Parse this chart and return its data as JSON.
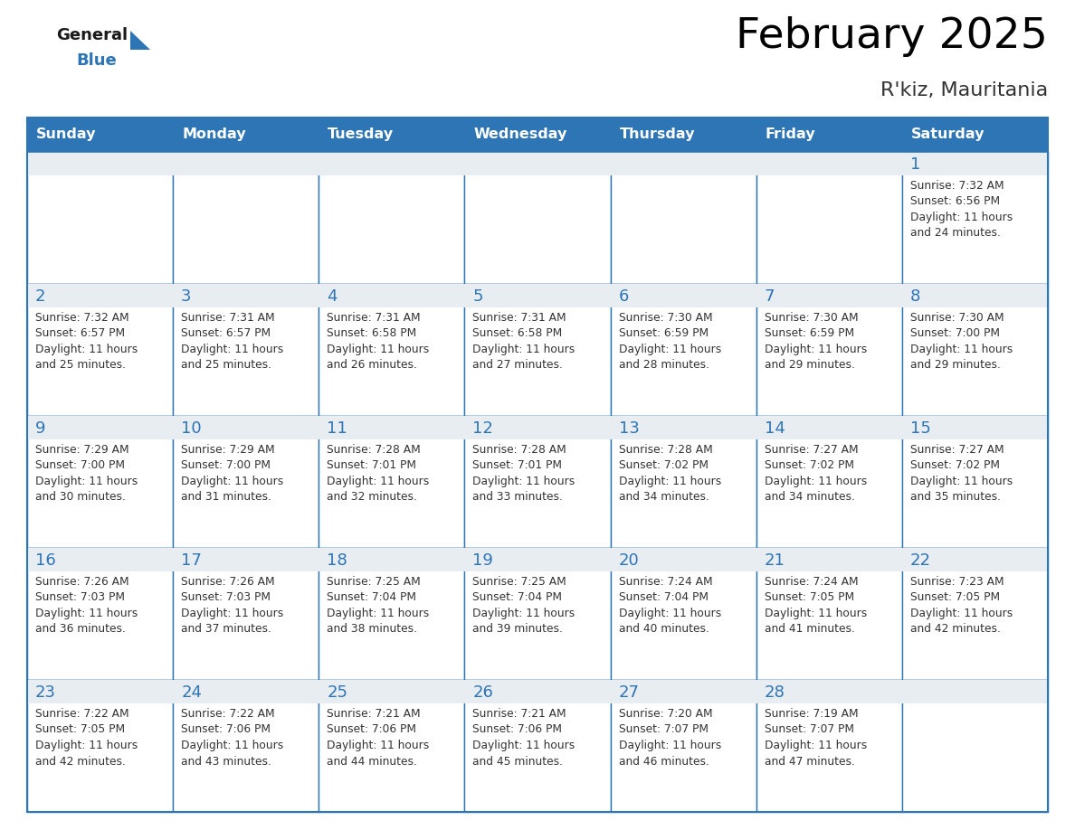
{
  "title": "February 2025",
  "subtitle": "R'kiz, Mauritania",
  "days_of_week": [
    "Sunday",
    "Monday",
    "Tuesday",
    "Wednesday",
    "Thursday",
    "Friday",
    "Saturday"
  ],
  "header_bg": "#2e75b6",
  "header_text": "#ffffff",
  "cell_bg_white": "#ffffff",
  "cell_bg_gray": "#e8edf2",
  "border_color": "#2e75b6",
  "text_color": "#333333",
  "day_number_color": "#2e75b6",
  "logo_black": "#1a1a1a",
  "logo_blue": "#2e75b6",
  "calendar_data": [
    [
      null,
      null,
      null,
      null,
      null,
      null,
      1
    ],
    [
      2,
      3,
      4,
      5,
      6,
      7,
      8
    ],
    [
      9,
      10,
      11,
      12,
      13,
      14,
      15
    ],
    [
      16,
      17,
      18,
      19,
      20,
      21,
      22
    ],
    [
      23,
      24,
      25,
      26,
      27,
      28,
      null
    ]
  ],
  "sun_info": {
    "1": {
      "sunrise": "7:32 AM",
      "sunset": "6:56 PM",
      "daylight_h": "11 hours",
      "daylight_m": "and 24 minutes."
    },
    "2": {
      "sunrise": "7:32 AM",
      "sunset": "6:57 PM",
      "daylight_h": "11 hours",
      "daylight_m": "and 25 minutes."
    },
    "3": {
      "sunrise": "7:31 AM",
      "sunset": "6:57 PM",
      "daylight_h": "11 hours",
      "daylight_m": "and 25 minutes."
    },
    "4": {
      "sunrise": "7:31 AM",
      "sunset": "6:58 PM",
      "daylight_h": "11 hours",
      "daylight_m": "and 26 minutes."
    },
    "5": {
      "sunrise": "7:31 AM",
      "sunset": "6:58 PM",
      "daylight_h": "11 hours",
      "daylight_m": "and 27 minutes."
    },
    "6": {
      "sunrise": "7:30 AM",
      "sunset": "6:59 PM",
      "daylight_h": "11 hours",
      "daylight_m": "and 28 minutes."
    },
    "7": {
      "sunrise": "7:30 AM",
      "sunset": "6:59 PM",
      "daylight_h": "11 hours",
      "daylight_m": "and 29 minutes."
    },
    "8": {
      "sunrise": "7:30 AM",
      "sunset": "7:00 PM",
      "daylight_h": "11 hours",
      "daylight_m": "and 29 minutes."
    },
    "9": {
      "sunrise": "7:29 AM",
      "sunset": "7:00 PM",
      "daylight_h": "11 hours",
      "daylight_m": "and 30 minutes."
    },
    "10": {
      "sunrise": "7:29 AM",
      "sunset": "7:00 PM",
      "daylight_h": "11 hours",
      "daylight_m": "and 31 minutes."
    },
    "11": {
      "sunrise": "7:28 AM",
      "sunset": "7:01 PM",
      "daylight_h": "11 hours",
      "daylight_m": "and 32 minutes."
    },
    "12": {
      "sunrise": "7:28 AM",
      "sunset": "7:01 PM",
      "daylight_h": "11 hours",
      "daylight_m": "and 33 minutes."
    },
    "13": {
      "sunrise": "7:28 AM",
      "sunset": "7:02 PM",
      "daylight_h": "11 hours",
      "daylight_m": "and 34 minutes."
    },
    "14": {
      "sunrise": "7:27 AM",
      "sunset": "7:02 PM",
      "daylight_h": "11 hours",
      "daylight_m": "and 34 minutes."
    },
    "15": {
      "sunrise": "7:27 AM",
      "sunset": "7:02 PM",
      "daylight_h": "11 hours",
      "daylight_m": "and 35 minutes."
    },
    "16": {
      "sunrise": "7:26 AM",
      "sunset": "7:03 PM",
      "daylight_h": "11 hours",
      "daylight_m": "and 36 minutes."
    },
    "17": {
      "sunrise": "7:26 AM",
      "sunset": "7:03 PM",
      "daylight_h": "11 hours",
      "daylight_m": "and 37 minutes."
    },
    "18": {
      "sunrise": "7:25 AM",
      "sunset": "7:04 PM",
      "daylight_h": "11 hours",
      "daylight_m": "and 38 minutes."
    },
    "19": {
      "sunrise": "7:25 AM",
      "sunset": "7:04 PM",
      "daylight_h": "11 hours",
      "daylight_m": "and 39 minutes."
    },
    "20": {
      "sunrise": "7:24 AM",
      "sunset": "7:04 PM",
      "daylight_h": "11 hours",
      "daylight_m": "and 40 minutes."
    },
    "21": {
      "sunrise": "7:24 AM",
      "sunset": "7:05 PM",
      "daylight_h": "11 hours",
      "daylight_m": "and 41 minutes."
    },
    "22": {
      "sunrise": "7:23 AM",
      "sunset": "7:05 PM",
      "daylight_h": "11 hours",
      "daylight_m": "and 42 minutes."
    },
    "23": {
      "sunrise": "7:22 AM",
      "sunset": "7:05 PM",
      "daylight_h": "11 hours",
      "daylight_m": "and 42 minutes."
    },
    "24": {
      "sunrise": "7:22 AM",
      "sunset": "7:06 PM",
      "daylight_h": "11 hours",
      "daylight_m": "and 43 minutes."
    },
    "25": {
      "sunrise": "7:21 AM",
      "sunset": "7:06 PM",
      "daylight_h": "11 hours",
      "daylight_m": "and 44 minutes."
    },
    "26": {
      "sunrise": "7:21 AM",
      "sunset": "7:06 PM",
      "daylight_h": "11 hours",
      "daylight_m": "and 45 minutes."
    },
    "27": {
      "sunrise": "7:20 AM",
      "sunset": "7:07 PM",
      "daylight_h": "11 hours",
      "daylight_m": "and 46 minutes."
    },
    "28": {
      "sunrise": "7:19 AM",
      "sunset": "7:07 PM",
      "daylight_h": "11 hours",
      "daylight_m": "and 47 minutes."
    }
  }
}
